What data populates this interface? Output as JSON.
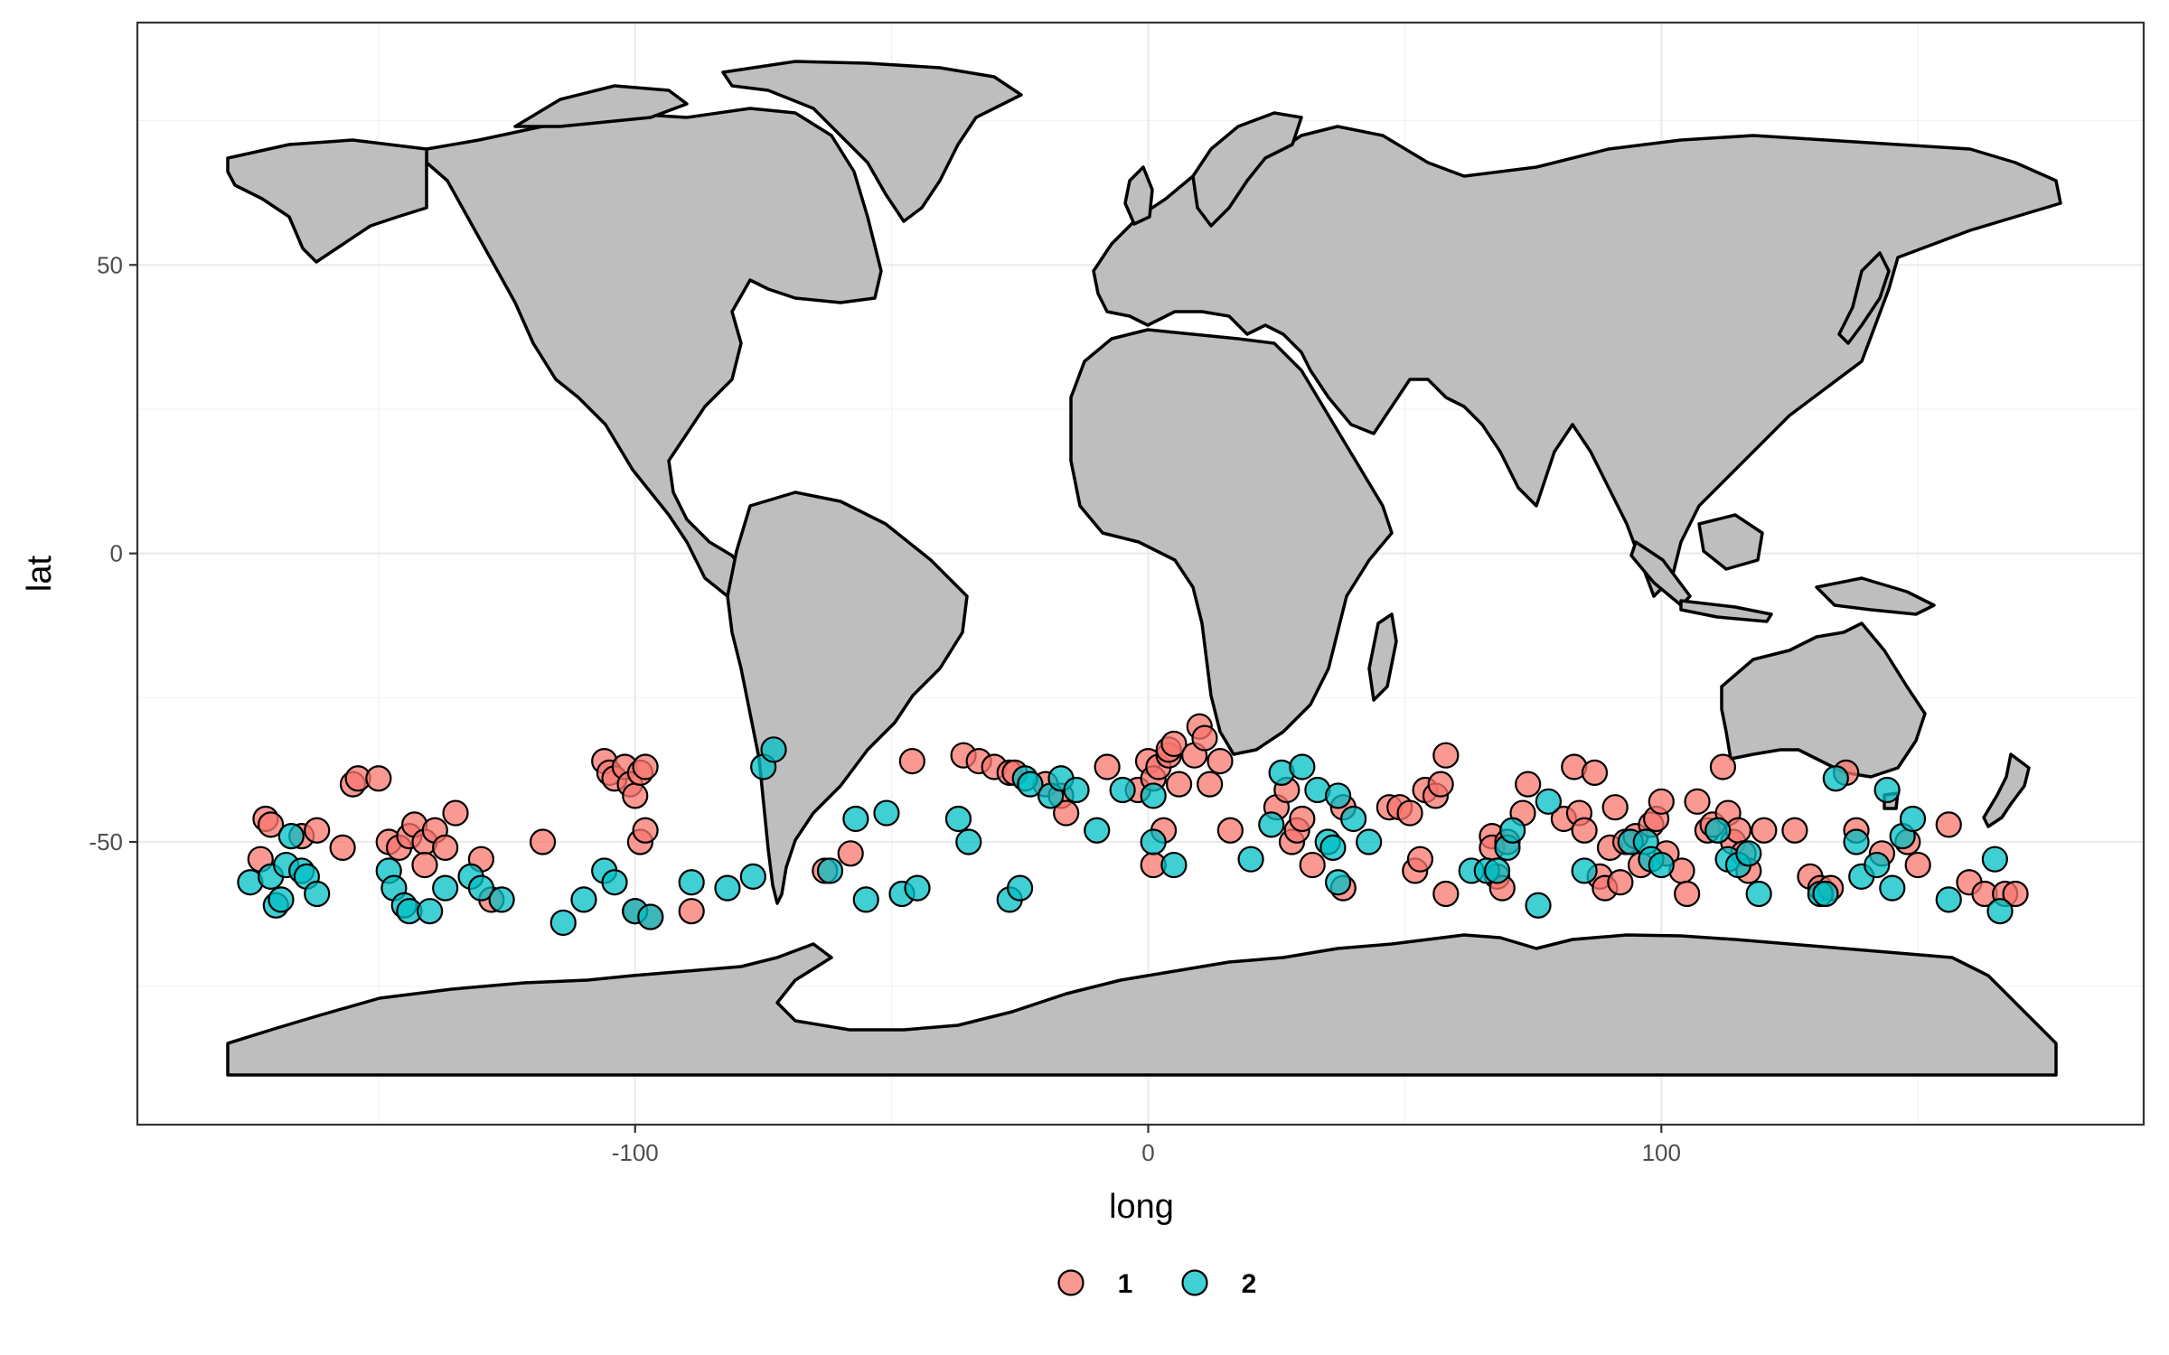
{
  "chart_data": {
    "type": "scatter",
    "title": "",
    "xlabel": "long",
    "ylabel": "lat",
    "xlim": [
      -197,
      194
    ],
    "ylim": [
      -99,
      92
    ],
    "x_ticks": [
      -100,
      0,
      100
    ],
    "x_tick_labels": [
      "-100",
      "0",
      "100"
    ],
    "y_ticks": [
      -50,
      0,
      50
    ],
    "y_tick_labels": [
      "-50",
      "0",
      "50"
    ],
    "grid": true,
    "legend_position": "bottom",
    "basemap": "world country outlines (grey fill, black border)",
    "colors": {
      "1": "#F8766D",
      "2": "#00BFC4",
      "land": "#BEBEBE",
      "border": "#000000"
    },
    "series": [
      {
        "name": "1",
        "points": [
          [
            -172,
            -46
          ],
          [
            -171,
            -47
          ],
          [
            -173,
            -53
          ],
          [
            -165,
            -49
          ],
          [
            -162,
            -48
          ],
          [
            -157,
            -51
          ],
          [
            -155,
            -40
          ],
          [
            -154,
            -39
          ],
          [
            -150,
            -39
          ],
          [
            -148,
            -50
          ],
          [
            -146,
            -51
          ],
          [
            -144,
            -49
          ],
          [
            -143,
            -47
          ],
          [
            -141,
            -50
          ],
          [
            -139,
            -48
          ],
          [
            -137,
            -51
          ],
          [
            -135,
            -45
          ],
          [
            -141,
            -54
          ],
          [
            -130,
            -53
          ],
          [
            -128,
            -60
          ],
          [
            -118,
            -50
          ],
          [
            -106,
            -36
          ],
          [
            -105,
            -38
          ],
          [
            -104,
            -39
          ],
          [
            -102,
            -37
          ],
          [
            -101,
            -40
          ],
          [
            -100,
            -42
          ],
          [
            -99,
            -38
          ],
          [
            -98,
            -37
          ],
          [
            -99,
            -50
          ],
          [
            -98,
            -48
          ],
          [
            -100,
            -62
          ],
          [
            -97,
            -63
          ],
          [
            -89,
            -62
          ],
          [
            -63,
            -55
          ],
          [
            -58,
            -52
          ],
          [
            -46,
            -36
          ],
          [
            -36,
            -35
          ],
          [
            -33,
            -36
          ],
          [
            -30,
            -37
          ],
          [
            -27,
            -38
          ],
          [
            -26,
            -38
          ],
          [
            -20,
            -40
          ],
          [
            -17,
            -42
          ],
          [
            -16,
            -45
          ],
          [
            -8,
            -37
          ],
          [
            -2,
            -41
          ],
          [
            0,
            -36
          ],
          [
            1,
            -39
          ],
          [
            2,
            -37
          ],
          [
            4,
            -35
          ],
          [
            4,
            -34
          ],
          [
            5,
            -33
          ],
          [
            6,
            -40
          ],
          [
            9,
            -35
          ],
          [
            10,
            -30
          ],
          [
            11,
            -32
          ],
          [
            12,
            -40
          ],
          [
            14,
            -36
          ],
          [
            1,
            -54
          ],
          [
            3,
            -48
          ],
          [
            16,
            -48
          ],
          [
            25,
            -44
          ],
          [
            27,
            -41
          ],
          [
            28,
            -50
          ],
          [
            29,
            -48
          ],
          [
            30,
            -46
          ],
          [
            32,
            -54
          ],
          [
            38,
            -44
          ],
          [
            38,
            -58
          ],
          [
            47,
            -44
          ],
          [
            49,
            -44
          ],
          [
            51,
            -45
          ],
          [
            52,
            -55
          ],
          [
            53,
            -53
          ],
          [
            54,
            -41
          ],
          [
            56,
            -42
          ],
          [
            57,
            -40
          ],
          [
            58,
            -35
          ],
          [
            58,
            -59
          ],
          [
            67,
            -49
          ],
          [
            67,
            -51
          ],
          [
            68,
            -56
          ],
          [
            69,
            -58
          ],
          [
            70,
            -50
          ],
          [
            73,
            -45
          ],
          [
            74,
            -40
          ],
          [
            81,
            -46
          ],
          [
            83,
            -37
          ],
          [
            84,
            -45
          ],
          [
            85,
            -48
          ],
          [
            87,
            -38
          ],
          [
            88,
            -56
          ],
          [
            89,
            -58
          ],
          [
            90,
            -51
          ],
          [
            91,
            -44
          ],
          [
            92,
            -57
          ],
          [
            93,
            -50
          ],
          [
            95,
            -49
          ],
          [
            96,
            -54
          ],
          [
            98,
            -47
          ],
          [
            99,
            -46
          ],
          [
            100,
            -43
          ],
          [
            101,
            -52
          ],
          [
            104,
            -55
          ],
          [
            105,
            -59
          ],
          [
            107,
            -43
          ],
          [
            109,
            -48
          ],
          [
            110,
            -47
          ],
          [
            112,
            -37
          ],
          [
            113,
            -45
          ],
          [
            114,
            -50
          ],
          [
            115,
            -48
          ],
          [
            116,
            -52
          ],
          [
            117,
            -55
          ],
          [
            120,
            -48
          ],
          [
            126,
            -48
          ],
          [
            129,
            -56
          ],
          [
            131,
            -58
          ],
          [
            133,
            -58
          ],
          [
            136,
            -38
          ],
          [
            138,
            -48
          ],
          [
            143,
            -52
          ],
          [
            148,
            -50
          ],
          [
            150,
            -54
          ],
          [
            156,
            -47
          ],
          [
            160,
            -57
          ],
          [
            163,
            -59
          ],
          [
            167,
            -59
          ],
          [
            169,
            -59
          ]
        ]
      },
      {
        "name": "2",
        "points": [
          [
            -175,
            -57
          ],
          [
            -171,
            -56
          ],
          [
            -170,
            -61
          ],
          [
            -169,
            -60
          ],
          [
            -168,
            -54
          ],
          [
            -167,
            -49
          ],
          [
            -165,
            -55
          ],
          [
            -164,
            -56
          ],
          [
            -162,
            -59
          ],
          [
            -148,
            -55
          ],
          [
            -147,
            -58
          ],
          [
            -145,
            -61
          ],
          [
            -144,
            -62
          ],
          [
            -140,
            -62
          ],
          [
            -137,
            -58
          ],
          [
            -132,
            -56
          ],
          [
            -130,
            -58
          ],
          [
            -126,
            -60
          ],
          [
            -114,
            -64
          ],
          [
            -110,
            -60
          ],
          [
            -106,
            -55
          ],
          [
            -104,
            -57
          ],
          [
            -100,
            -62
          ],
          [
            -97,
            -63
          ],
          [
            -89,
            -57
          ],
          [
            -82,
            -58
          ],
          [
            -77,
            -56
          ],
          [
            -75,
            -37
          ],
          [
            -73,
            -34
          ],
          [
            -62,
            -55
          ],
          [
            -57,
            -46
          ],
          [
            -55,
            -60
          ],
          [
            -51,
            -45
          ],
          [
            -48,
            -59
          ],
          [
            -45,
            -58
          ],
          [
            -37,
            -46
          ],
          [
            -35,
            -50
          ],
          [
            -27,
            -60
          ],
          [
            -25,
            -58
          ],
          [
            -24,
            -39
          ],
          [
            -23,
            -40
          ],
          [
            -19,
            -42
          ],
          [
            -17,
            -39
          ],
          [
            -14,
            -41
          ],
          [
            -10,
            -48
          ],
          [
            -5,
            -41
          ],
          [
            1,
            -42
          ],
          [
            1,
            -50
          ],
          [
            5,
            -54
          ],
          [
            20,
            -53
          ],
          [
            24,
            -47
          ],
          [
            26,
            -38
          ],
          [
            30,
            -37
          ],
          [
            33,
            -41
          ],
          [
            35,
            -50
          ],
          [
            36,
            -51
          ],
          [
            37,
            -42
          ],
          [
            37,
            -57
          ],
          [
            40,
            -46
          ],
          [
            43,
            -50
          ],
          [
            63,
            -55
          ],
          [
            66,
            -55
          ],
          [
            68,
            -55
          ],
          [
            70,
            -51
          ],
          [
            71,
            -48
          ],
          [
            76,
            -61
          ],
          [
            78,
            -43
          ],
          [
            85,
            -55
          ],
          [
            94,
            -50
          ],
          [
            97,
            -50
          ],
          [
            98,
            -53
          ],
          [
            100,
            -54
          ],
          [
            111,
            -48
          ],
          [
            113,
            -53
          ],
          [
            115,
            -54
          ],
          [
            117,
            -52
          ],
          [
            119,
            -59
          ],
          [
            131,
            -59
          ],
          [
            132,
            -59
          ],
          [
            134,
            -39
          ],
          [
            138,
            -50
          ],
          [
            139,
            -56
          ],
          [
            142,
            -54
          ],
          [
            144,
            -41
          ],
          [
            145,
            -58
          ],
          [
            147,
            -49
          ],
          [
            149,
            -46
          ],
          [
            156,
            -60
          ],
          [
            165,
            -53
          ],
          [
            166,
            -62
          ]
        ]
      }
    ]
  }
}
